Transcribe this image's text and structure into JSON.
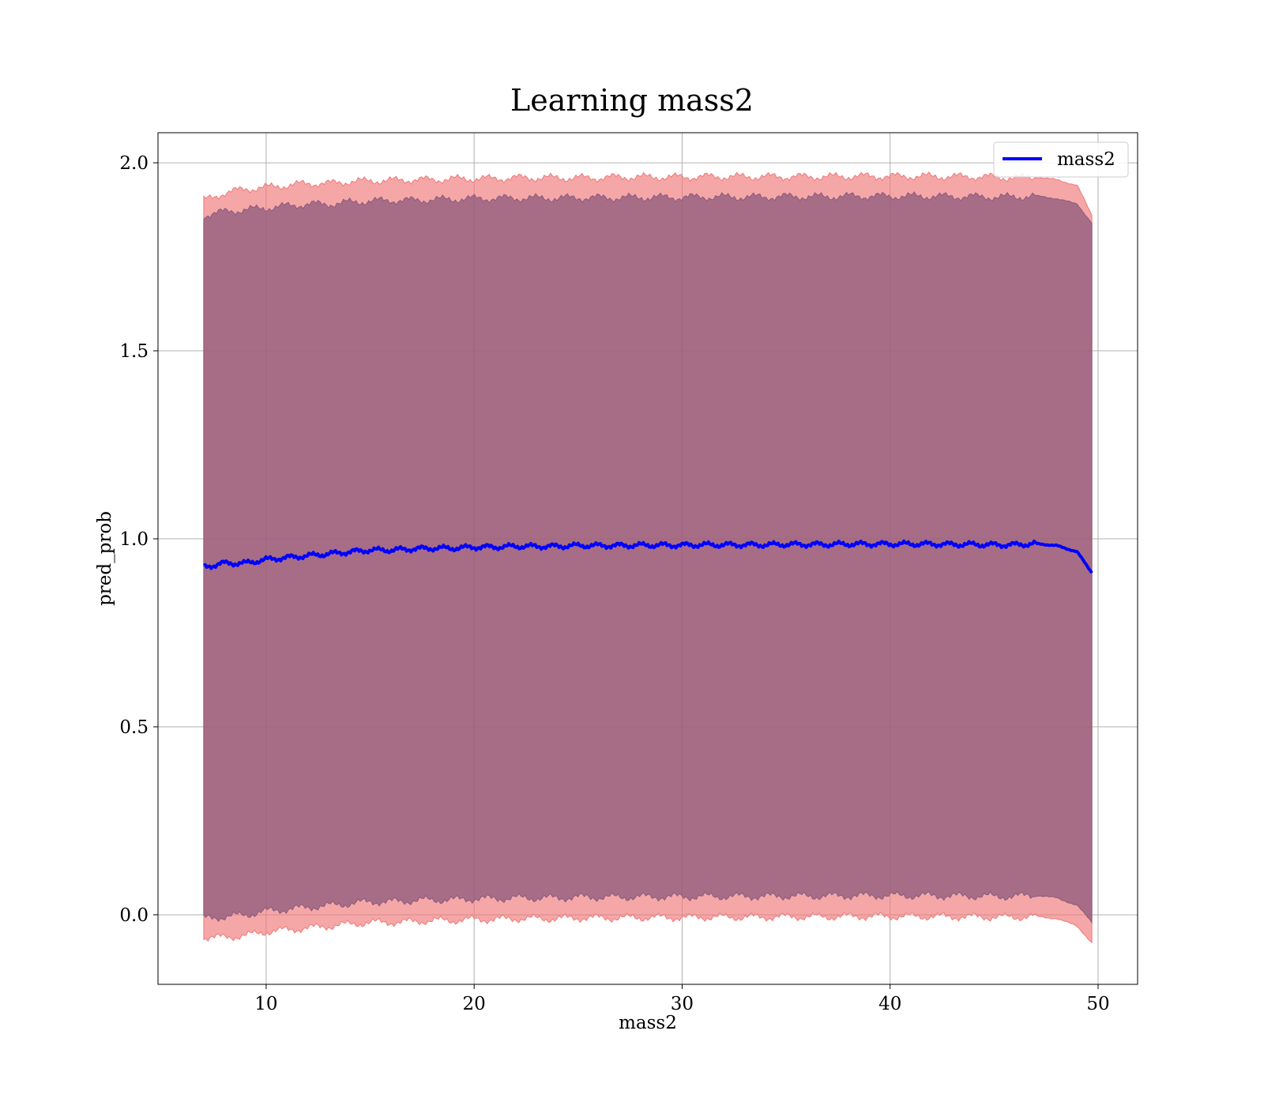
{
  "chart_data": {
    "type": "line",
    "title": "Learning mass2",
    "xlabel": "mass2",
    "ylabel": "pred_prob",
    "xlim": [
      4.8,
      51.9
    ],
    "ylim": [
      -0.185,
      2.08
    ],
    "x_ticks": [
      10,
      20,
      30,
      40,
      50
    ],
    "y_ticks": [
      0.0,
      0.5,
      1.0,
      1.5,
      2.0
    ],
    "x_tick_labels": [
      "10",
      "20",
      "30",
      40,
      "50"
    ],
    "y_tick_labels": [
      "0.0",
      "0.5",
      "1.0",
      "1.5",
      "2.0"
    ],
    "grid": true,
    "legend": {
      "position": "top-right",
      "entries": [
        "mass2"
      ]
    },
    "series": [
      {
        "name": "mass2",
        "color": "#0000ff",
        "x": [
          7,
          8,
          9,
          10,
          11,
          12,
          13,
          14,
          15,
          16,
          17,
          18,
          19,
          20,
          21,
          22,
          23,
          24,
          25,
          26,
          27,
          28,
          29,
          30,
          31,
          32,
          33,
          34,
          35,
          36,
          37,
          38,
          39,
          40,
          41,
          42,
          43,
          44,
          45,
          46,
          47,
          48,
          49,
          49.7
        ],
        "y": [
          0.925,
          0.935,
          0.935,
          0.945,
          0.95,
          0.955,
          0.96,
          0.965,
          0.97,
          0.97,
          0.973,
          0.975,
          0.975,
          0.978,
          0.978,
          0.98,
          0.98,
          0.98,
          0.982,
          0.982,
          0.982,
          0.983,
          0.983,
          0.983,
          0.984,
          0.984,
          0.984,
          0.984,
          0.985,
          0.985,
          0.985,
          0.986,
          0.986,
          0.986,
          0.986,
          0.986,
          0.985,
          0.985,
          0.984,
          0.984,
          0.987,
          0.982,
          0.965,
          0.91
        ]
      }
    ],
    "bands": [
      {
        "name": "outer band",
        "color": "#f07878",
        "upper": [
          1.9,
          1.92,
          1.93,
          1.935,
          1.94,
          1.945,
          1.945,
          1.95,
          1.952,
          1.953,
          1.955,
          1.955,
          1.957,
          1.958,
          1.958,
          1.96,
          1.96,
          1.96,
          1.96,
          1.96,
          1.962,
          1.962,
          1.962,
          1.962,
          1.963,
          1.963,
          1.963,
          1.963,
          1.963,
          1.963,
          1.963,
          1.964,
          1.964,
          1.964,
          1.964,
          1.964,
          1.963,
          1.963,
          1.962,
          1.96,
          1.962,
          1.955,
          1.94,
          1.86
        ],
        "lower": [
          -0.06,
          -0.06,
          -0.055,
          -0.045,
          -0.04,
          -0.035,
          -0.03,
          -0.025,
          -0.02,
          -0.02,
          -0.018,
          -0.015,
          -0.015,
          -0.012,
          -0.012,
          -0.01,
          -0.01,
          -0.01,
          -0.008,
          -0.008,
          -0.008,
          -0.007,
          -0.007,
          -0.007,
          -0.006,
          -0.006,
          -0.006,
          -0.006,
          -0.005,
          -0.005,
          -0.005,
          -0.004,
          -0.004,
          -0.004,
          -0.004,
          -0.004,
          -0.005,
          -0.005,
          -0.006,
          -0.006,
          -0.004,
          -0.01,
          -0.03,
          -0.075
        ]
      },
      {
        "name": "inner band",
        "color": "#8c5a7c",
        "upper": [
          1.86,
          1.87,
          1.875,
          1.88,
          1.885,
          1.89,
          1.89,
          1.895,
          1.898,
          1.9,
          1.9,
          1.902,
          1.903,
          1.905,
          1.905,
          1.906,
          1.906,
          1.906,
          1.907,
          1.907,
          1.907,
          1.908,
          1.908,
          1.908,
          1.909,
          1.909,
          1.909,
          1.909,
          1.91,
          1.91,
          1.91,
          1.911,
          1.911,
          1.911,
          1.911,
          1.911,
          1.91,
          1.91,
          1.909,
          1.909,
          1.912,
          1.905,
          1.89,
          1.84
        ],
        "lower": [
          -0.01,
          -0.005,
          0.0,
          0.01,
          0.015,
          0.02,
          0.025,
          0.03,
          0.035,
          0.035,
          0.038,
          0.04,
          0.04,
          0.043,
          0.043,
          0.045,
          0.045,
          0.045,
          0.047,
          0.047,
          0.047,
          0.048,
          0.048,
          0.048,
          0.049,
          0.049,
          0.049,
          0.049,
          0.05,
          0.05,
          0.05,
          0.051,
          0.051,
          0.051,
          0.051,
          0.051,
          0.05,
          0.05,
          0.049,
          0.049,
          0.052,
          0.045,
          0.025,
          -0.02
        ]
      }
    ]
  }
}
